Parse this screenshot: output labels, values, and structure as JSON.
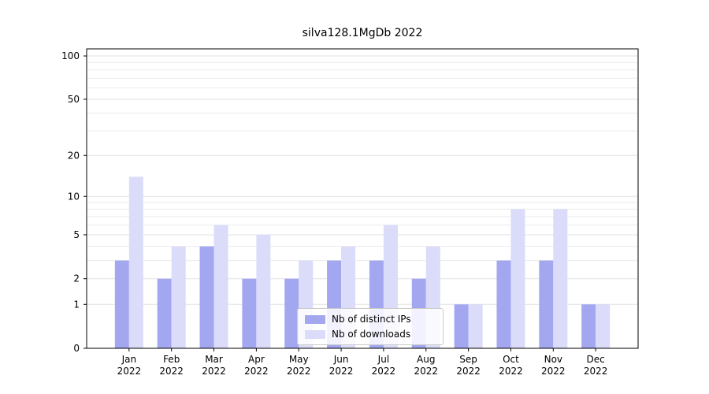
{
  "title": "silva128.1MgDb 2022",
  "chart_data": {
    "type": "bar",
    "title": "silva128.1MgDb 2022",
    "x_year_label": "2022",
    "categories": [
      "Jan",
      "Feb",
      "Mar",
      "Apr",
      "May",
      "Jun",
      "Jul",
      "Aug",
      "Sep",
      "Oct",
      "Nov",
      "Dec"
    ],
    "series": [
      {
        "name": "Nb of distinct IPs",
        "color": "#a3a7f0",
        "values": [
          3,
          2,
          4,
          2,
          2,
          3,
          3,
          2,
          1,
          3,
          3,
          1
        ]
      },
      {
        "name": "Nb of downloads",
        "color": "#dadcf9",
        "values": [
          14,
          4,
          6,
          5,
          3,
          4,
          6,
          4,
          1,
          8,
          8,
          1
        ]
      }
    ],
    "xlabel": "",
    "ylabel": "",
    "y_scale": "log1p",
    "y_ticks": [
      0,
      1,
      2,
      5,
      10,
      20,
      50,
      100
    ],
    "y_minor_gridlines": [
      3,
      4,
      6,
      7,
      8,
      9,
      30,
      40,
      60,
      70,
      80,
      90
    ],
    "ylim": [
      0,
      112
    ],
    "grid": true,
    "legend_position": "lower center"
  }
}
